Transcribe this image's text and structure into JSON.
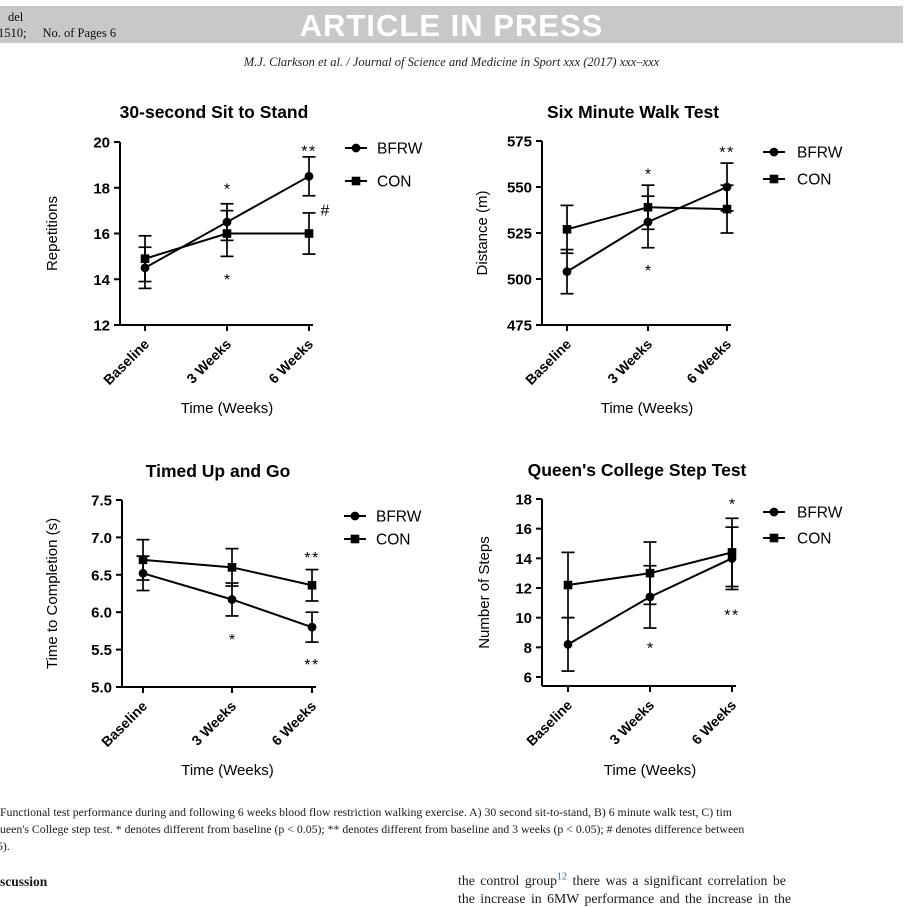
{
  "header": {
    "left_line1": "del",
    "left_line2a": "1510;",
    "left_line2b": "No. of Pages 6",
    "banner": "ARTICLE IN PRESS",
    "citation": "M.J. Clarkson et al. / Journal of Science and Medicine in Sport xxx (2017) xxx–xxx"
  },
  "chart_data": [
    {
      "id": "sit-to-stand",
      "type": "line",
      "title": "30-second Sit to Stand",
      "ylabel": "Repetitions",
      "xlabel": "Time (Weeks)",
      "categories": [
        "Baseline",
        "3 Weeks",
        "6 Weeks"
      ],
      "ylim": [
        12,
        20
      ],
      "yticks": [
        12,
        14,
        16,
        18,
        20
      ],
      "ytick_labels": [
        "12",
        "14",
        "16",
        "18",
        "20"
      ],
      "grid": false,
      "legend_position": "right-top",
      "series": [
        {
          "name": "BFRW",
          "marker": "circle",
          "values": [
            14.5,
            16.5,
            18.5
          ],
          "errors": [
            0.9,
            0.8,
            0.85
          ]
        },
        {
          "name": "CON",
          "marker": "square",
          "values": [
            14.9,
            16.0,
            16.0
          ],
          "errors": [
            1.0,
            1.0,
            0.9
          ]
        }
      ],
      "annotations": [
        {
          "text": "*",
          "cat": 1,
          "value": 18.1
        },
        {
          "text": "**",
          "cat": 2,
          "value": 19.75
        },
        {
          "text": "*",
          "cat": 1,
          "value": 14.15
        },
        {
          "text": "#",
          "cat": 2,
          "value": 17.0,
          "dx": 16
        }
      ]
    },
    {
      "id": "six-minute-walk",
      "type": "line",
      "title": "Six Minute Walk Test",
      "ylabel": "Distance (m)",
      "xlabel": "Time (Weeks)",
      "categories": [
        "Baseline",
        "3 Weeks",
        "6 Weeks"
      ],
      "ylim": [
        475,
        575
      ],
      "yticks": [
        475,
        500,
        525,
        550,
        575
      ],
      "ytick_labels": [
        "475",
        "500",
        "525",
        "550",
        "575"
      ],
      "grid": false,
      "legend_position": "right-top",
      "series": [
        {
          "name": "BFRW",
          "marker": "circle",
          "values": [
            504,
            531,
            550
          ],
          "errors": [
            12,
            14,
            13
          ]
        },
        {
          "name": "CON",
          "marker": "square",
          "values": [
            527,
            539,
            538
          ],
          "errors": [
            13,
            12,
            13
          ]
        }
      ],
      "annotations": [
        {
          "text": "*",
          "cat": 1,
          "value": 559
        },
        {
          "text": "**",
          "cat": 2,
          "value": 571
        },
        {
          "text": "*",
          "cat": 1,
          "value": 506.5
        }
      ]
    },
    {
      "id": "timed-up-and-go",
      "type": "line",
      "title": "Timed Up and Go",
      "ylabel": "Time to Completion (s)",
      "xlabel": "Time (Weeks)",
      "categories": [
        "Baseline",
        "3 Weeks",
        "6 Weeks"
      ],
      "ylim": [
        5.0,
        7.5
      ],
      "yticks": [
        5.0,
        5.5,
        6.0,
        6.5,
        7.0,
        7.5
      ],
      "ytick_labels": [
        "5.0",
        "5.5",
        "6.0",
        "6.5",
        "7.0",
        "7.5"
      ],
      "grid": false,
      "legend_position": "right-top",
      "series": [
        {
          "name": "BFRW",
          "marker": "circle",
          "values": [
            6.52,
            6.17,
            5.8
          ],
          "errors": [
            0.23,
            0.22,
            0.2
          ]
        },
        {
          "name": "CON",
          "marker": "square",
          "values": [
            6.7,
            6.6,
            6.36
          ],
          "errors": [
            0.27,
            0.25,
            0.21
          ]
        }
      ],
      "annotations": [
        {
          "text": "*",
          "cat": 1,
          "value": 5.68
        },
        {
          "text": "**",
          "cat": 2,
          "value": 6.78
        },
        {
          "text": "**",
          "cat": 2,
          "value": 5.35
        }
      ]
    },
    {
      "id": "queens-college-step-test",
      "type": "line",
      "title": "Queen's College Step Test",
      "ylabel": "Number of Steps",
      "xlabel": "Time (Weeks)",
      "categories": [
        "Baseline",
        "3 Weeks",
        "6 Weeks"
      ],
      "ylim": [
        6,
        18
      ],
      "yticks": [
        6,
        8,
        10,
        12,
        14,
        16,
        18
      ],
      "ytick_labels": [
        "6",
        "8",
        "10",
        "12",
        "14",
        "16",
        "18"
      ],
      "grid": false,
      "legend_position": "right-top",
      "series": [
        {
          "name": "BFRW",
          "marker": "circle",
          "values": [
            8.2,
            11.4,
            14.0
          ],
          "errors": [
            1.8,
            2.1,
            2.1
          ]
        },
        {
          "name": "CON",
          "marker": "square",
          "values": [
            12.2,
            13.0,
            14.4
          ],
          "errors": [
            2.2,
            2.1,
            2.3
          ]
        }
      ],
      "annotations": [
        {
          "text": "*",
          "cat": 2,
          "value": 17.9
        },
        {
          "text": "*",
          "cat": 1,
          "value": 8.2
        },
        {
          "text": "**",
          "cat": 2,
          "value": 10.4
        }
      ]
    }
  ],
  "caption": {
    "line1": "Functional test performance during and following 6 weeks blood flow restriction walking exercise. A) 30 second sit-to-stand, B) 6 minute walk test, C) tim",
    "line2": "ueen's College step test. * denotes different from baseline (p < 0.05); ** denotes different from baseline and 3 weeks (p < 0.05); # denotes difference between",
    "line3": "5)."
  },
  "body": {
    "section_heading": "scussion",
    "right_text_before": "the control group",
    "right_ref": "12",
    "right_text_after": " there was a significant correlation be",
    "right_partial_line": "the increase in 6MW performance and the increase in the"
  },
  "colors": {
    "banner_bg": "#c8c8c8",
    "banner_text": "#ffffff",
    "ink": "#1a1a1a",
    "chart_ink": "#000000",
    "reference_link": "#2d5fa8"
  }
}
